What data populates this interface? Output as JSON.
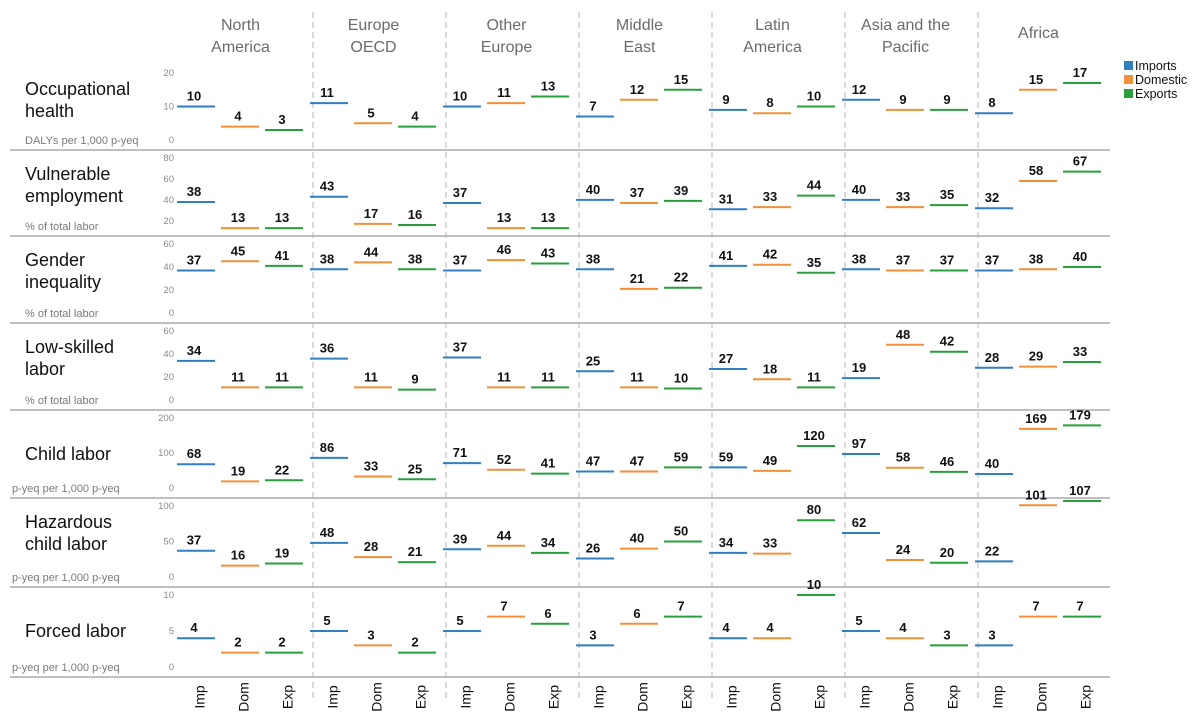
{
  "chart_data": {
    "type": "dot-strip",
    "regions": [
      "North America",
      "Europe OECD",
      "Other Europe",
      "Middle East",
      "Latin America",
      "Asia and the Pacific",
      "Africa"
    ],
    "region_display": [
      [
        "North",
        "America"
      ],
      [
        "Europe",
        "OECD"
      ],
      [
        "Other",
        "Europe"
      ],
      [
        "Middle",
        "East"
      ],
      [
        "Latin",
        "America"
      ],
      [
        "Asia and the",
        "Pacific"
      ],
      [
        "Africa"
      ]
    ],
    "categories": [
      "Imp",
      "Dom",
      "Exp"
    ],
    "legend": [
      {
        "name": "Imports",
        "color": "#2f7fc1"
      },
      {
        "name": "Domestic",
        "color": "#f0913a"
      },
      {
        "name": "Exports",
        "color": "#27a03c"
      }
    ],
    "colors": {
      "Imp": "#2f7fc1",
      "Dom": "#f0913a",
      "Exp": "#27a03c"
    },
    "rows": [
      {
        "title": [
          "Occupational",
          "health"
        ],
        "unit": "DALYs per 1,000 p-yeq",
        "ylim": [
          0,
          20
        ],
        "ticks": [
          0,
          10,
          20
        ],
        "values": [
          [
            10,
            4,
            3
          ],
          [
            11,
            5,
            4
          ],
          [
            10,
            11,
            13
          ],
          [
            7,
            12,
            15
          ],
          [
            9,
            8,
            10
          ],
          [
            12,
            9,
            9
          ],
          [
            8,
            15,
            17
          ]
        ]
      },
      {
        "title": [
          "Vulnerable",
          "employment"
        ],
        "unit": "% of total labor",
        "ylim": [
          15,
          80
        ],
        "ticks": [
          20,
          40,
          60,
          80
        ],
        "values": [
          [
            38,
            13,
            13
          ],
          [
            43,
            17,
            16
          ],
          [
            37,
            13,
            13
          ],
          [
            40,
            37,
            39
          ],
          [
            31,
            33,
            44
          ],
          [
            40,
            33,
            35
          ],
          [
            32,
            58,
            67
          ]
        ]
      },
      {
        "title": [
          "Gender",
          "inequality"
        ],
        "unit": "% of total labor",
        "ylim": [
          0,
          60
        ],
        "ticks": [
          0,
          20,
          40,
          60
        ],
        "values": [
          [
            37,
            45,
            41
          ],
          [
            38,
            44,
            38
          ],
          [
            37,
            46,
            43
          ],
          [
            38,
            21,
            22
          ],
          [
            41,
            42,
            35
          ],
          [
            38,
            37,
            37
          ],
          [
            37,
            38,
            40
          ]
        ]
      },
      {
        "title": [
          "Low-skilled",
          "labor"
        ],
        "unit": "% of total labor",
        "ylim": [
          0,
          60
        ],
        "ticks": [
          0,
          20,
          40,
          60
        ],
        "values": [
          [
            34,
            11,
            11
          ],
          [
            36,
            11,
            9
          ],
          [
            37,
            11,
            11
          ],
          [
            25,
            11,
            10
          ],
          [
            27,
            18,
            11
          ],
          [
            19,
            48,
            42
          ],
          [
            28,
            29,
            33
          ]
        ]
      },
      {
        "title": [
          "Child labor"
        ],
        "unit": "p-yeq per 1,000 p-yeq",
        "ylim": [
          0,
          200
        ],
        "ticks": [
          0,
          100,
          200
        ],
        "values": [
          [
            68,
            19,
            22
          ],
          [
            86,
            33,
            25
          ],
          [
            71,
            52,
            41
          ],
          [
            47,
            47,
            59
          ],
          [
            59,
            49,
            120
          ],
          [
            97,
            58,
            46
          ],
          [
            40,
            169,
            179
          ]
        ]
      },
      {
        "title": [
          "Hazardous",
          "child labor"
        ],
        "unit": "p-yeq per 1,000 p-yeq",
        "ylim": [
          0,
          100
        ],
        "ticks": [
          0,
          50,
          100
        ],
        "values": [
          [
            37,
            16,
            19
          ],
          [
            48,
            28,
            21
          ],
          [
            39,
            44,
            34
          ],
          [
            26,
            40,
            50
          ],
          [
            34,
            33,
            80
          ],
          [
            62,
            24,
            20
          ],
          [
            22,
            101,
            107
          ]
        ]
      },
      {
        "title": [
          "Forced labor"
        ],
        "unit": "p-yeq per 1,000 p-yeq",
        "ylim": [
          0,
          10
        ],
        "ticks": [
          0,
          5,
          10
        ],
        "values": [
          [
            4,
            2,
            2
          ],
          [
            5,
            3,
            2
          ],
          [
            5,
            7,
            6
          ],
          [
            3,
            6,
            7
          ],
          [
            4,
            4,
            10
          ],
          [
            5,
            4,
            3
          ],
          [
            3,
            7,
            7
          ]
        ]
      }
    ]
  }
}
